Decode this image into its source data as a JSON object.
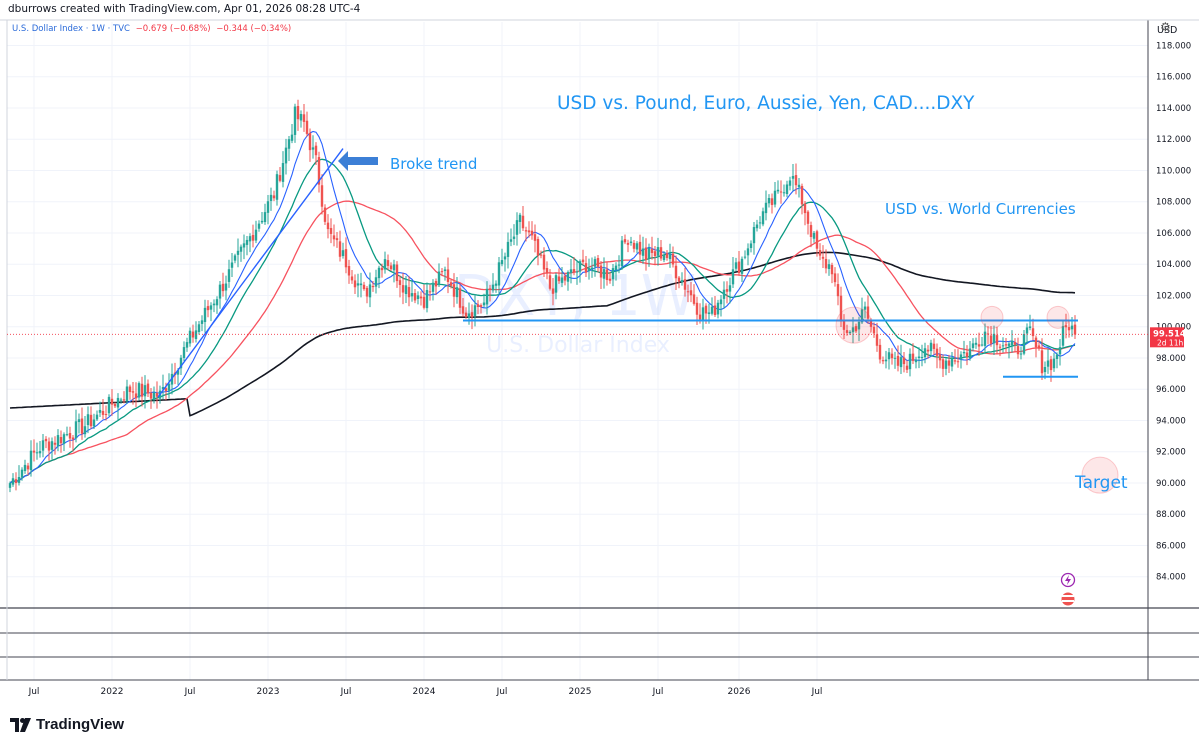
{
  "header": {
    "author_line": "dburrows created with TradingView.com, Apr 01, 2026 08:28 UTC-4",
    "symbol": "U.S. Dollar Index · 1W · TVC",
    "change_1": "−0.679 (−0.68%)",
    "change_2": "−0.344 (−0.34%)"
  },
  "colors": {
    "up": "#26a69a",
    "down": "#ef5350",
    "line_blue": "#2962ff",
    "annot_blue": "#2196f3",
    "ma_green": "#089981",
    "ma_red": "#f7525f",
    "ma_black": "#131722"
  },
  "chart_data": {
    "type": "candlestick",
    "x_labels": [
      "Jul",
      "2022",
      "Jul",
      "2023",
      "Jul",
      "2024",
      "Jul",
      "2025",
      "Jul",
      "2026",
      "Jul"
    ],
    "y_axis_unit": "USD",
    "y_ticks": [
      84,
      86,
      88,
      90,
      92,
      94,
      96,
      98,
      100,
      102,
      104,
      106,
      108,
      110,
      112,
      114,
      116,
      118
    ],
    "ylim": [
      82,
      119.5
    ],
    "last_price": "99.514",
    "countdown": "2d 11h",
    "watermark_symbol": "DXY, 1W",
    "watermark_name": "U.S. Dollar Index",
    "annotations": {
      "title": "USD vs. Pound, Euro, Aussie, Yen, CAD....DXY",
      "broke_trend": "Broke trend",
      "world": "USD vs. World Currencies",
      "target": "Target"
    },
    "horizontal_levels": [
      {
        "name": "resistance",
        "value": 100.4
      },
      {
        "name": "support",
        "value": 96.8
      }
    ],
    "anchor_closes": [
      {
        "week": 0,
        "close": 90.0
      },
      {
        "week": 10,
        "close": 92.3
      },
      {
        "week": 25,
        "close": 93.7
      },
      {
        "week": 40,
        "close": 96.0
      },
      {
        "week": 50,
        "close": 95.6
      },
      {
        "week": 60,
        "close": 99.2
      },
      {
        "week": 75,
        "close": 104.0
      },
      {
        "week": 88,
        "close": 108.5
      },
      {
        "week": 95,
        "close": 113.5
      },
      {
        "week": 98,
        "close": 113.0
      },
      {
        "week": 102,
        "close": 110.5
      },
      {
        "week": 106,
        "close": 106.0
      },
      {
        "week": 112,
        "close": 104.2
      },
      {
        "week": 118,
        "close": 102.0
      },
      {
        "week": 125,
        "close": 104.5
      },
      {
        "week": 132,
        "close": 102.5
      },
      {
        "week": 138,
        "close": 101.8
      },
      {
        "week": 145,
        "close": 103.5
      },
      {
        "week": 152,
        "close": 101.0
      },
      {
        "week": 158,
        "close": 101.5
      },
      {
        "week": 165,
        "close": 104.5
      },
      {
        "week": 170,
        "close": 106.7
      },
      {
        "week": 174,
        "close": 105.5
      },
      {
        "week": 180,
        "close": 102.5
      },
      {
        "week": 186,
        "close": 103.2
      },
      {
        "week": 192,
        "close": 104.0
      },
      {
        "week": 200,
        "close": 103.3
      },
      {
        "week": 206,
        "close": 105.8
      },
      {
        "week": 212,
        "close": 104.5
      },
      {
        "week": 218,
        "close": 104.8
      },
      {
        "week": 224,
        "close": 103.0
      },
      {
        "week": 230,
        "close": 101.0
      },
      {
        "week": 234,
        "close": 100.8
      },
      {
        "week": 238,
        "close": 102.5
      },
      {
        "week": 244,
        "close": 104.3
      },
      {
        "week": 250,
        "close": 107.0
      },
      {
        "week": 256,
        "close": 108.4
      },
      {
        "week": 260,
        "close": 109.8
      },
      {
        "week": 264,
        "close": 108.1
      },
      {
        "week": 270,
        "close": 104.2
      },
      {
        "week": 274,
        "close": 103.8
      },
      {
        "week": 277,
        "close": 100.2
      },
      {
        "week": 280,
        "close": 99.6
      },
      {
        "week": 285,
        "close": 101.0
      },
      {
        "week": 290,
        "close": 98.4
      },
      {
        "week": 295,
        "close": 97.5
      },
      {
        "week": 300,
        "close": 97.8
      },
      {
        "week": 305,
        "close": 98.8
      },
      {
        "week": 310,
        "close": 97.8
      },
      {
        "week": 315,
        "close": 98.0
      },
      {
        "week": 320,
        "close": 98.5
      },
      {
        "week": 325,
        "close": 99.7
      },
      {
        "week": 330,
        "close": 99.2
      },
      {
        "week": 335,
        "close": 98.4
      },
      {
        "week": 340,
        "close": 99.6
      },
      {
        "week": 344,
        "close": 97.6
      },
      {
        "week": 348,
        "close": 97.8
      },
      {
        "week": 351,
        "close": 99.5
      },
      {
        "week": 353,
        "close": 100.2
      },
      {
        "week": 355,
        "close": 99.5
      }
    ]
  },
  "footer": {
    "brand": "TradingView"
  }
}
